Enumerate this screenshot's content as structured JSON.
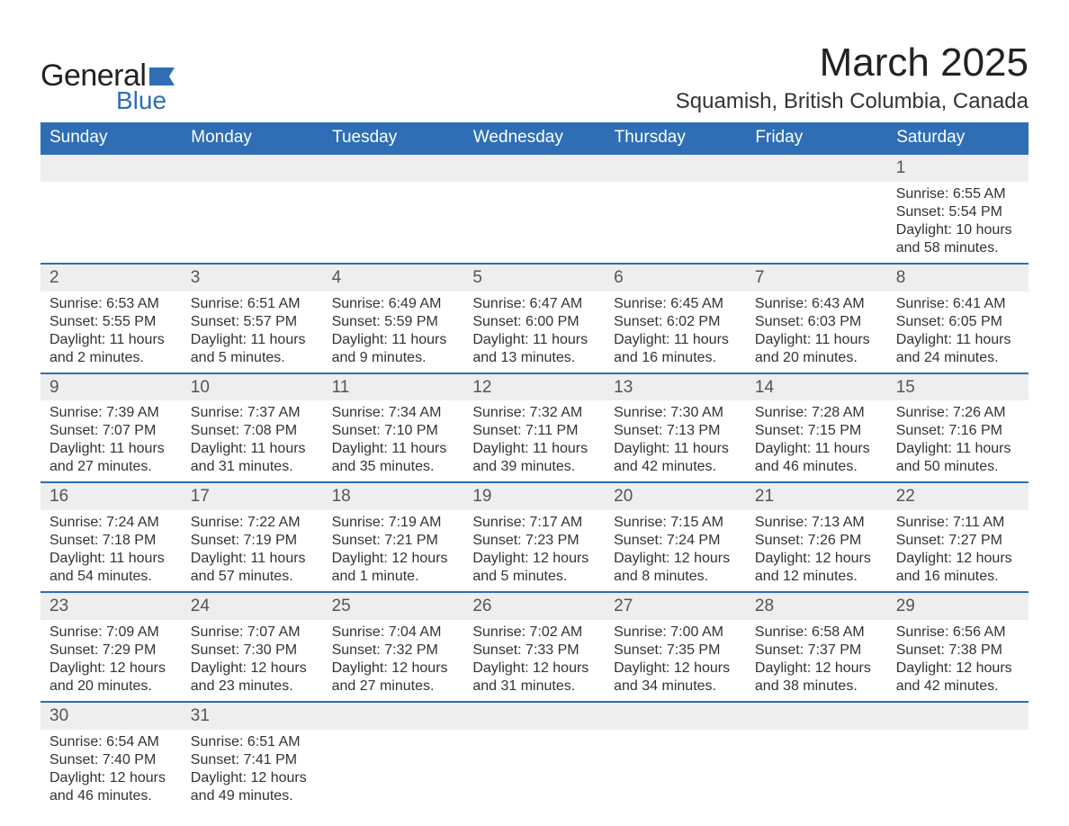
{
  "logo": {
    "word1": "General",
    "word2": "Blue",
    "brand_color": "#2f6eb5"
  },
  "title": "March 2025",
  "location": "Squamish, British Columbia, Canada",
  "colors": {
    "header_bg": "#2f6eb5",
    "header_text": "#ffffff",
    "daynum_bg": "#eeeeee",
    "row_divider": "#2f6eb5",
    "body_bg": "#ffffff",
    "text": "#333333"
  },
  "typography": {
    "title_fontsize": 44,
    "location_fontsize": 24,
    "th_fontsize": 19,
    "daynum_fontsize": 19,
    "cell_fontsize": 16
  },
  "days_of_week": [
    "Sunday",
    "Monday",
    "Tuesday",
    "Wednesday",
    "Thursday",
    "Friday",
    "Saturday"
  ],
  "weeks": [
    [
      null,
      null,
      null,
      null,
      null,
      null,
      {
        "n": "1",
        "sr": "Sunrise: 6:55 AM",
        "ss": "Sunset: 5:54 PM",
        "dl1": "Daylight: 10 hours",
        "dl2": "and 58 minutes."
      }
    ],
    [
      {
        "n": "2",
        "sr": "Sunrise: 6:53 AM",
        "ss": "Sunset: 5:55 PM",
        "dl1": "Daylight: 11 hours",
        "dl2": "and 2 minutes."
      },
      {
        "n": "3",
        "sr": "Sunrise: 6:51 AM",
        "ss": "Sunset: 5:57 PM",
        "dl1": "Daylight: 11 hours",
        "dl2": "and 5 minutes."
      },
      {
        "n": "4",
        "sr": "Sunrise: 6:49 AM",
        "ss": "Sunset: 5:59 PM",
        "dl1": "Daylight: 11 hours",
        "dl2": "and 9 minutes."
      },
      {
        "n": "5",
        "sr": "Sunrise: 6:47 AM",
        "ss": "Sunset: 6:00 PM",
        "dl1": "Daylight: 11 hours",
        "dl2": "and 13 minutes."
      },
      {
        "n": "6",
        "sr": "Sunrise: 6:45 AM",
        "ss": "Sunset: 6:02 PM",
        "dl1": "Daylight: 11 hours",
        "dl2": "and 16 minutes."
      },
      {
        "n": "7",
        "sr": "Sunrise: 6:43 AM",
        "ss": "Sunset: 6:03 PM",
        "dl1": "Daylight: 11 hours",
        "dl2": "and 20 minutes."
      },
      {
        "n": "8",
        "sr": "Sunrise: 6:41 AM",
        "ss": "Sunset: 6:05 PM",
        "dl1": "Daylight: 11 hours",
        "dl2": "and 24 minutes."
      }
    ],
    [
      {
        "n": "9",
        "sr": "Sunrise: 7:39 AM",
        "ss": "Sunset: 7:07 PM",
        "dl1": "Daylight: 11 hours",
        "dl2": "and 27 minutes."
      },
      {
        "n": "10",
        "sr": "Sunrise: 7:37 AM",
        "ss": "Sunset: 7:08 PM",
        "dl1": "Daylight: 11 hours",
        "dl2": "and 31 minutes."
      },
      {
        "n": "11",
        "sr": "Sunrise: 7:34 AM",
        "ss": "Sunset: 7:10 PM",
        "dl1": "Daylight: 11 hours",
        "dl2": "and 35 minutes."
      },
      {
        "n": "12",
        "sr": "Sunrise: 7:32 AM",
        "ss": "Sunset: 7:11 PM",
        "dl1": "Daylight: 11 hours",
        "dl2": "and 39 minutes."
      },
      {
        "n": "13",
        "sr": "Sunrise: 7:30 AM",
        "ss": "Sunset: 7:13 PM",
        "dl1": "Daylight: 11 hours",
        "dl2": "and 42 minutes."
      },
      {
        "n": "14",
        "sr": "Sunrise: 7:28 AM",
        "ss": "Sunset: 7:15 PM",
        "dl1": "Daylight: 11 hours",
        "dl2": "and 46 minutes."
      },
      {
        "n": "15",
        "sr": "Sunrise: 7:26 AM",
        "ss": "Sunset: 7:16 PM",
        "dl1": "Daylight: 11 hours",
        "dl2": "and 50 minutes."
      }
    ],
    [
      {
        "n": "16",
        "sr": "Sunrise: 7:24 AM",
        "ss": "Sunset: 7:18 PM",
        "dl1": "Daylight: 11 hours",
        "dl2": "and 54 minutes."
      },
      {
        "n": "17",
        "sr": "Sunrise: 7:22 AM",
        "ss": "Sunset: 7:19 PM",
        "dl1": "Daylight: 11 hours",
        "dl2": "and 57 minutes."
      },
      {
        "n": "18",
        "sr": "Sunrise: 7:19 AM",
        "ss": "Sunset: 7:21 PM",
        "dl1": "Daylight: 12 hours",
        "dl2": "and 1 minute."
      },
      {
        "n": "19",
        "sr": "Sunrise: 7:17 AM",
        "ss": "Sunset: 7:23 PM",
        "dl1": "Daylight: 12 hours",
        "dl2": "and 5 minutes."
      },
      {
        "n": "20",
        "sr": "Sunrise: 7:15 AM",
        "ss": "Sunset: 7:24 PM",
        "dl1": "Daylight: 12 hours",
        "dl2": "and 8 minutes."
      },
      {
        "n": "21",
        "sr": "Sunrise: 7:13 AM",
        "ss": "Sunset: 7:26 PM",
        "dl1": "Daylight: 12 hours",
        "dl2": "and 12 minutes."
      },
      {
        "n": "22",
        "sr": "Sunrise: 7:11 AM",
        "ss": "Sunset: 7:27 PM",
        "dl1": "Daylight: 12 hours",
        "dl2": "and 16 minutes."
      }
    ],
    [
      {
        "n": "23",
        "sr": "Sunrise: 7:09 AM",
        "ss": "Sunset: 7:29 PM",
        "dl1": "Daylight: 12 hours",
        "dl2": "and 20 minutes."
      },
      {
        "n": "24",
        "sr": "Sunrise: 7:07 AM",
        "ss": "Sunset: 7:30 PM",
        "dl1": "Daylight: 12 hours",
        "dl2": "and 23 minutes."
      },
      {
        "n": "25",
        "sr": "Sunrise: 7:04 AM",
        "ss": "Sunset: 7:32 PM",
        "dl1": "Daylight: 12 hours",
        "dl2": "and 27 minutes."
      },
      {
        "n": "26",
        "sr": "Sunrise: 7:02 AM",
        "ss": "Sunset: 7:33 PM",
        "dl1": "Daylight: 12 hours",
        "dl2": "and 31 minutes."
      },
      {
        "n": "27",
        "sr": "Sunrise: 7:00 AM",
        "ss": "Sunset: 7:35 PM",
        "dl1": "Daylight: 12 hours",
        "dl2": "and 34 minutes."
      },
      {
        "n": "28",
        "sr": "Sunrise: 6:58 AM",
        "ss": "Sunset: 7:37 PM",
        "dl1": "Daylight: 12 hours",
        "dl2": "and 38 minutes."
      },
      {
        "n": "29",
        "sr": "Sunrise: 6:56 AM",
        "ss": "Sunset: 7:38 PM",
        "dl1": "Daylight: 12 hours",
        "dl2": "and 42 minutes."
      }
    ],
    [
      {
        "n": "30",
        "sr": "Sunrise: 6:54 AM",
        "ss": "Sunset: 7:40 PM",
        "dl1": "Daylight: 12 hours",
        "dl2": "and 46 minutes."
      },
      {
        "n": "31",
        "sr": "Sunrise: 6:51 AM",
        "ss": "Sunset: 7:41 PM",
        "dl1": "Daylight: 12 hours",
        "dl2": "and 49 minutes."
      },
      null,
      null,
      null,
      null,
      null
    ]
  ]
}
